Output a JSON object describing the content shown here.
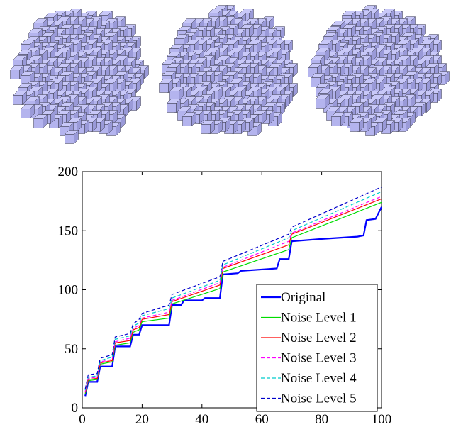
{
  "colors": {
    "voxel_face": "#b4b4ee",
    "voxel_top": "#c8c8f8",
    "voxel_side": "#9a9ad8",
    "voxel_edge": "#3a3a4e"
  },
  "voxel_panels": [
    {
      "name": "voxel-sphere-1",
      "icon": "voxel-sphere-icon"
    },
    {
      "name": "voxel-sphere-2",
      "icon": "voxel-sphere-icon"
    },
    {
      "name": "voxel-sphere-3",
      "icon": "voxel-sphere-icon"
    }
  ],
  "chart_data": {
    "type": "line",
    "title": "",
    "xlabel": "",
    "ylabel": "",
    "xlim": [
      0,
      100
    ],
    "ylim": [
      0,
      200
    ],
    "xticks": [
      0,
      20,
      40,
      60,
      80,
      100
    ],
    "yticks": [
      0,
      50,
      100,
      150,
      200
    ],
    "xtick_labels": [
      "0",
      "20",
      "40",
      "60",
      "80",
      "100"
    ],
    "ytick_labels": [
      "0",
      "50",
      "100",
      "150",
      "200"
    ],
    "grid": false,
    "legend_position": "bottom-right",
    "series": [
      {
        "name": "Original",
        "color": "#0000ff",
        "style": "solid",
        "width": 2.2,
        "x": [
          1,
          2,
          5,
          6,
          10,
          11,
          16,
          17,
          19,
          20,
          29,
          30,
          33,
          34,
          40,
          41,
          46,
          47,
          52,
          53,
          65,
          66,
          69,
          70,
          80,
          92,
          94,
          95,
          98,
          100
        ],
        "y": [
          10,
          22,
          22,
          35,
          35,
          52,
          52,
          62,
          62,
          70,
          70,
          87,
          87,
          91,
          91,
          93,
          93,
          113,
          114,
          116,
          118,
          126,
          126,
          141,
          143,
          145,
          146,
          159,
          160,
          170
        ]
      },
      {
        "name": "Noise Level 1",
        "color": "#00dd00",
        "style": "solid",
        "width": 1.2,
        "x": [
          1,
          2,
          5,
          6,
          10,
          11,
          16,
          17,
          19,
          20,
          29,
          30,
          46,
          47,
          69,
          70,
          100
        ],
        "y": [
          12,
          23,
          24,
          37,
          39,
          53,
          55,
          64,
          66,
          73,
          76,
          88,
          101,
          115,
          134,
          144,
          174
        ]
      },
      {
        "name": "Noise Level 2",
        "color": "#ff0000",
        "style": "solid",
        "width": 1.2,
        "x": [
          1,
          2,
          5,
          6,
          10,
          11,
          16,
          17,
          19,
          20,
          29,
          30,
          46,
          47,
          69,
          70,
          100
        ],
        "y": [
          13,
          24,
          25,
          38,
          40,
          55,
          57,
          66,
          68,
          75,
          79,
          90,
          104,
          118,
          138,
          147,
          177
        ]
      },
      {
        "name": "Noise Level 3",
        "color": "#ff00ff",
        "style": "dashed",
        "width": 1.2,
        "x": [
          1,
          2,
          5,
          6,
          10,
          11,
          16,
          17,
          19,
          20,
          29,
          30,
          46,
          47,
          69,
          70,
          100
        ],
        "y": [
          14,
          25,
          26,
          39,
          41,
          56,
          59,
          67,
          70,
          76,
          81,
          91,
          106,
          119,
          141,
          148,
          179
        ]
      },
      {
        "name": "Noise Level 4",
        "color": "#00cccc",
        "style": "dashed",
        "width": 1.2,
        "x": [
          1,
          2,
          5,
          6,
          10,
          11,
          16,
          17,
          19,
          20,
          29,
          30,
          46,
          47,
          69,
          70,
          100
        ],
        "y": [
          15,
          26,
          27,
          40,
          43,
          58,
          61,
          69,
          72,
          78,
          84,
          93,
          108,
          121,
          144,
          150,
          183
        ]
      },
      {
        "name": "Noise Level 5",
        "color": "#0000cc",
        "style": "dashed",
        "width": 1.2,
        "x": [
          1,
          2,
          5,
          6,
          10,
          11,
          16,
          17,
          19,
          20,
          29,
          30,
          46,
          47,
          69,
          70,
          100
        ],
        "y": [
          16,
          28,
          29,
          42,
          45,
          60,
          63,
          71,
          75,
          80,
          87,
          96,
          111,
          124,
          147,
          153,
          187
        ]
      }
    ]
  }
}
